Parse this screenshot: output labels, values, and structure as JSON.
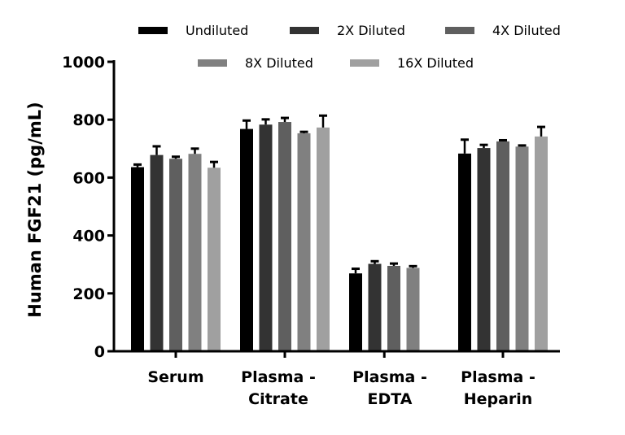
{
  "chart_data": {
    "type": "bar",
    "title": "",
    "xlabel": "",
    "ylabel": "Human  FGF21 (pg/mL)",
    "ylim": [
      0,
      1000
    ],
    "yticks": [
      0,
      200,
      400,
      600,
      800,
      1000
    ],
    "grid": false,
    "legend_placement": "top",
    "categories": [
      [
        "Serum"
      ],
      [
        "Plasma -",
        "Citrate"
      ],
      [
        "Plasma -",
        "EDTA"
      ],
      [
        "Plasma -",
        "Heparin"
      ]
    ],
    "series": [
      {
        "name": "Undiluted",
        "color": "#000000",
        "values": [
          636,
          768,
          269,
          683
        ],
        "error": [
          9,
          29,
          16,
          48
        ]
      },
      {
        "name": "2X Diluted",
        "color": "#333333",
        "values": [
          678,
          783,
          302,
          702
        ],
        "error": [
          30,
          18,
          9,
          11
        ]
      },
      {
        "name": "4X Diluted",
        "color": "#5f5f5f",
        "values": [
          665,
          792,
          295,
          725
        ],
        "error": [
          7,
          14,
          8,
          4
        ]
      },
      {
        "name": "8X Diluted",
        "color": "#808080",
        "values": [
          682,
          753,
          288,
          707
        ],
        "error": [
          18,
          5,
          6,
          4
        ]
      },
      {
        "name": "16X Diluted",
        "color": "#a0a0a0",
        "values": [
          634,
          773,
          null,
          742
        ],
        "error": [
          20,
          41,
          null,
          33
        ]
      }
    ]
  }
}
